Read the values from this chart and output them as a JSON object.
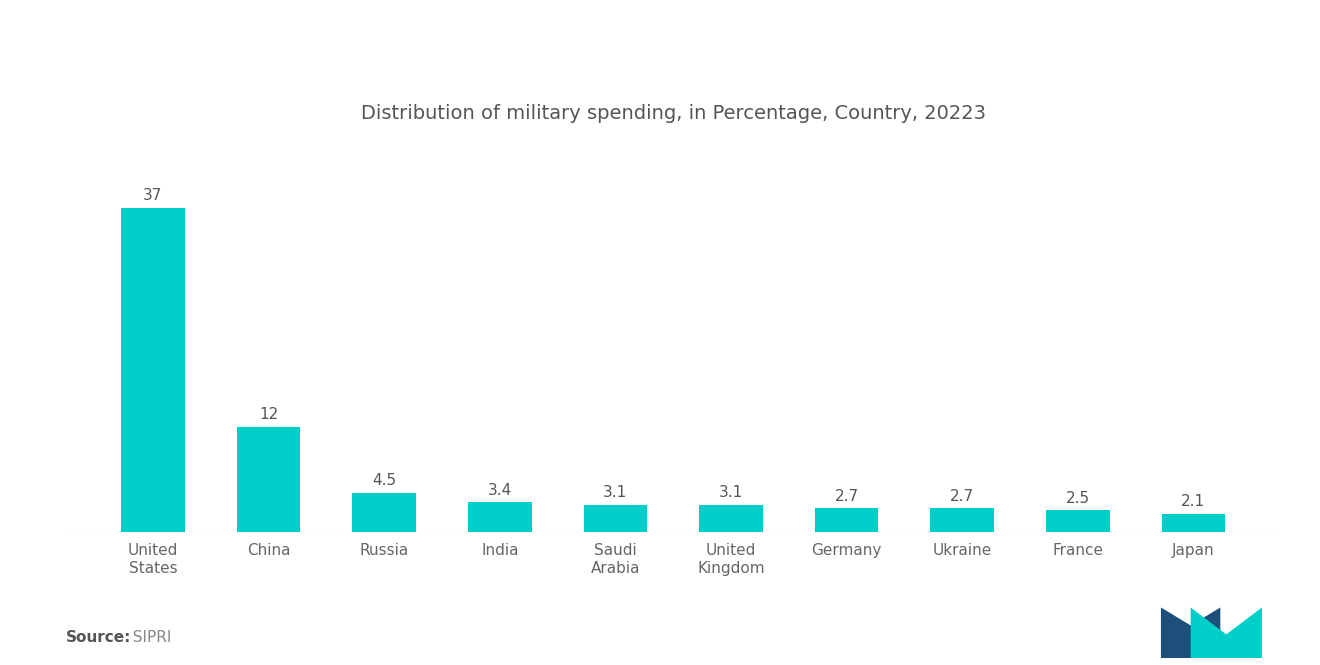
{
  "title": "Distribution of military spending, in Percentage, Country, 20223",
  "categories": [
    "United\nStates",
    "China",
    "Russia",
    "India",
    "Saudi\nArabia",
    "United\nKingdom",
    "Germany",
    "Ukraine",
    "France",
    "Japan"
  ],
  "values": [
    37,
    12,
    4.5,
    3.4,
    3.1,
    3.1,
    2.7,
    2.7,
    2.5,
    2.1
  ],
  "bar_color": "#00CEC9",
  "background_color": "#ffffff",
  "source_bold": "Source:",
  "source_normal": "  SIPRI",
  "title_fontsize": 14,
  "label_fontsize": 11,
  "value_fontsize": 11,
  "source_fontsize": 11,
  "ylim": [
    0,
    44
  ],
  "bar_width": 0.55,
  "logo_blue": "#1c4f7a",
  "logo_teal": "#00CEC9"
}
